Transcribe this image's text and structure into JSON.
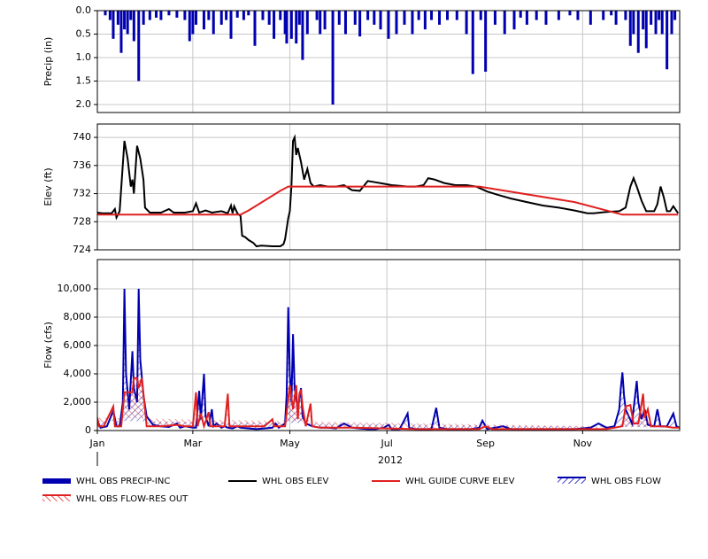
{
  "chart_data": [
    {
      "type": "bar",
      "ylabel": "Precip (in)",
      "xlim": [
        0,
        366
      ],
      "ylim": [
        2.17,
        0
      ],
      "yticks": [
        {
          "value": 0,
          "label": "0.0"
        },
        0.5,
        {
          "value": 1,
          "label": "1.0"
        },
        1.5,
        {
          "value": 2,
          "label": "2.0"
        }
      ],
      "grid": true,
      "series": [
        {
          "name": "WHL OBS PRECIP-INC",
          "color": "#0000b0",
          "x": [
            5,
            8,
            10,
            13,
            15,
            17,
            19,
            21,
            23,
            26,
            29,
            33,
            37,
            40,
            45,
            50,
            55,
            58,
            60,
            62,
            67,
            70,
            73,
            78,
            81,
            84,
            88,
            92,
            95,
            99,
            104,
            108,
            111,
            115,
            118,
            119,
            122,
            125,
            127,
            129,
            132,
            138,
            140,
            143,
            148,
            152,
            156,
            162,
            165,
            170,
            174,
            178,
            183,
            188,
            193,
            198,
            202,
            206,
            210,
            215,
            220,
            226,
            232,
            236,
            241,
            244,
            250,
            256,
            262,
            266,
            270,
            276,
            282,
            290,
            297,
            302,
            310,
            318,
            323,
            326,
            332,
            335,
            337,
            340,
            343,
            345,
            348,
            351,
            353,
            355,
            358,
            361,
            363
          ],
          "values": [
            0.1,
            0.2,
            0.6,
            0.3,
            0.9,
            0.4,
            0.5,
            0.2,
            0.65,
            1.5,
            0.3,
            0.2,
            0.15,
            0.2,
            0.1,
            0.15,
            0.2,
            0.65,
            0.5,
            0.3,
            0.4,
            0.2,
            0.5,
            0.3,
            0.2,
            0.6,
            0.15,
            0.2,
            0.1,
            0.75,
            0.2,
            0.3,
            0.6,
            0.2,
            0.5,
            0.7,
            0.6,
            0.7,
            0.3,
            1.05,
            0.5,
            0.2,
            0.5,
            0.4,
            2.0,
            0.3,
            0.5,
            0.3,
            0.55,
            0.2,
            0.3,
            0.4,
            0.6,
            0.5,
            0.3,
            0.5,
            0.2,
            0.4,
            0.2,
            0.3,
            0.2,
            0.2,
            0.5,
            1.35,
            0.2,
            1.3,
            0.3,
            0.5,
            0.4,
            0.15,
            0.3,
            0.2,
            0.3,
            0.2,
            0.1,
            0.2,
            0.3,
            0.2,
            0.1,
            0.3,
            0.2,
            0.75,
            0.5,
            0.9,
            0.4,
            0.8,
            0.3,
            0.5,
            0.2,
            0.5,
            1.25,
            0.5,
            0.2
          ]
        }
      ]
    },
    {
      "type": "line",
      "ylabel": "Elev (ft)",
      "xlim": [
        0,
        366
      ],
      "ylim": [
        724,
        741.9
      ],
      "yticks": [
        724,
        728,
        732,
        736,
        740
      ],
      "grid": true,
      "series": [
        {
          "name": "WHL OBS ELEV",
          "color": "#000000",
          "x": [
            0,
            3,
            9,
            11,
            12,
            14,
            17,
            19,
            21,
            22,
            23,
            25,
            27,
            29,
            30,
            33,
            40,
            45,
            48,
            55,
            60,
            62,
            64,
            68,
            72,
            78,
            82,
            84,
            85,
            86,
            88,
            90,
            91,
            93,
            95,
            98,
            100,
            103,
            110,
            115,
            117,
            118,
            119,
            120,
            121,
            122,
            123,
            124,
            125,
            126,
            128,
            130,
            132,
            134,
            136,
            140,
            145,
            150,
            155,
            160,
            165,
            170,
            175,
            180,
            185,
            190,
            195,
            200,
            205,
            208,
            212,
            218,
            225,
            232,
            238,
            245,
            252,
            260,
            270,
            280,
            290,
            300,
            308,
            312,
            320,
            328,
            332,
            335,
            337,
            339,
            342,
            345,
            350,
            352,
            354,
            356,
            358,
            360,
            362,
            365
          ],
          "values": [
            729.3,
            729.2,
            729.2,
            729.8,
            728.6,
            729.5,
            739.5,
            737,
            733,
            734,
            732,
            738.8,
            737,
            734,
            730,
            729.3,
            729.3,
            729.8,
            729.3,
            729.3,
            729.5,
            730.6,
            729.3,
            729.6,
            729.3,
            729.5,
            729.2,
            730.3,
            729.2,
            730.2,
            729.2,
            728.8,
            726,
            725.8,
            725.4,
            725,
            724.5,
            724.6,
            724.5,
            724.5,
            724.8,
            725.5,
            727,
            728.5,
            729.5,
            733,
            739.5,
            740,
            737.5,
            738.5,
            736.5,
            734,
            735.5,
            733.5,
            733,
            733.2,
            733,
            733,
            733.2,
            732.5,
            732.4,
            733.8,
            733.6,
            733.4,
            733.2,
            733.1,
            733,
            733,
            733.2,
            734.2,
            734,
            733.5,
            733.2,
            733.2,
            733,
            732.3,
            731.8,
            731.3,
            730.8,
            730.3,
            730,
            729.6,
            729.2,
            729.2,
            729.4,
            729.5,
            730,
            733,
            734.2,
            733,
            731,
            729.5,
            729.5,
            730.5,
            733,
            731.5,
            729.5,
            729.5,
            730.2,
            729.2
          ]
        },
        {
          "name": "WHL GUIDE CURVE ELEV",
          "color": "#e02020",
          "x": [
            0,
            90,
            95,
            105,
            115,
            120,
            240,
            300,
            330,
            365
          ],
          "values": [
            729,
            729,
            729.6,
            731,
            732.4,
            733,
            733,
            730.8,
            729,
            729
          ]
        }
      ]
    },
    {
      "type": "line",
      "ylabel": "Flow (cfs)",
      "xlabel": "2012",
      "xlim": [
        0,
        366
      ],
      "ylim": [
        0,
        12062
      ],
      "xticks": [
        {
          "value": 0,
          "label": "Jan"
        },
        {
          "value": 60,
          "label": "Mar"
        },
        {
          "value": 121,
          "label": "May"
        },
        {
          "value": 182,
          "label": "Jul"
        },
        {
          "value": 244,
          "label": "Sep"
        },
        {
          "value": 305,
          "label": "Nov"
        }
      ],
      "yticks": [
        0,
        {
          "value": 2000,
          "label": "2,000"
        },
        {
          "value": 4000,
          "label": "4,000"
        },
        {
          "value": 6000,
          "label": "6,000"
        },
        {
          "value": 8000,
          "label": "8,000"
        },
        {
          "value": 10000,
          "label": "10,000"
        }
      ],
      "grid": true,
      "series": [
        {
          "name": "WHL OBS FLOW",
          "color": "#0000b0",
          "fill": "hatch",
          "x": [
            0,
            2,
            6,
            10,
            12,
            14,
            16,
            17,
            18,
            20,
            22,
            23,
            25,
            26,
            27,
            29,
            31,
            35,
            40,
            45,
            50,
            52,
            55,
            60,
            62,
            64,
            65,
            67,
            68,
            70,
            72,
            73,
            75,
            78,
            80,
            82,
            85,
            88,
            90,
            95,
            100,
            105,
            110,
            112,
            114,
            118,
            119,
            120,
            121,
            122,
            123,
            124,
            126,
            128,
            129,
            131,
            135,
            140,
            145,
            150,
            155,
            160,
            165,
            170,
            175,
            180,
            183,
            185,
            190,
            195,
            196,
            200,
            205,
            210,
            213,
            215,
            220,
            230,
            235,
            240,
            242,
            245,
            250,
            255,
            260,
            270,
            280,
            290,
            300,
            310,
            315,
            320,
            325,
            328,
            329,
            330,
            331,
            332,
            334,
            336,
            338,
            339,
            340,
            342,
            344,
            346,
            350,
            352,
            354,
            358,
            362,
            364,
            366
          ],
          "values": [
            700,
            200,
            300,
            1400,
            300,
            300,
            2000,
            10000,
            4000,
            1500,
            5600,
            3000,
            2000,
            10000,
            5000,
            2500,
            1000,
            400,
            300,
            250,
            500,
            200,
            300,
            200,
            200,
            2800,
            800,
            4000,
            1000,
            300,
            1500,
            300,
            500,
            200,
            300,
            200,
            150,
            300,
            200,
            150,
            100,
            150,
            200,
            500,
            200,
            500,
            2500,
            8700,
            4000,
            2000,
            6800,
            3000,
            1500,
            3000,
            1000,
            500,
            300,
            200,
            200,
            150,
            500,
            200,
            150,
            100,
            100,
            200,
            400,
            100,
            100,
            1200,
            200,
            100,
            100,
            100,
            1600,
            200,
            100,
            100,
            100,
            200,
            700,
            100,
            200,
            300,
            100,
            100,
            100,
            100,
            100,
            200,
            500,
            200,
            300,
            1500,
            3000,
            4100,
            2500,
            1500,
            1000,
            500,
            2500,
            3500,
            2000,
            800,
            1500,
            400,
            300,
            1500,
            300,
            300,
            1200,
            300,
            200
          ]
        },
        {
          "name": "WHL OBS FLOW-RES OUT",
          "color": "#e02020",
          "fill": "hatch",
          "x": [
            0,
            1,
            4,
            10,
            11,
            15,
            17,
            22,
            23,
            25,
            26,
            28,
            30,
            31,
            35,
            40,
            50,
            55,
            60,
            62,
            63,
            65,
            67,
            70,
            71,
            80,
            82,
            83,
            84,
            88,
            100,
            105,
            110,
            111,
            118,
            121,
            123,
            125,
            126,
            127,
            128,
            129,
            131,
            134,
            135,
            140,
            160,
            200,
            240,
            244,
            248,
            300,
            320,
            330,
            332,
            335,
            337,
            340,
            343,
            344,
            346,
            348,
            356,
            362,
            366
          ],
          "values": [
            900,
            300,
            300,
            1700,
            300,
            300,
            2700,
            2700,
            3700,
            3700,
            3000,
            3700,
            1500,
            300,
            300,
            300,
            400,
            300,
            300,
            2700,
            300,
            1200,
            300,
            1300,
            300,
            300,
            2600,
            300,
            300,
            300,
            300,
            300,
            800,
            300,
            300,
            3200,
            1500,
            3200,
            800,
            2600,
            2900,
            1700,
            300,
            1900,
            300,
            200,
            200,
            100,
            100,
            300,
            100,
            100,
            100,
            300,
            1700,
            1800,
            500,
            500,
            2600,
            900,
            1500,
            300,
            300,
            200,
            200
          ]
        }
      ]
    }
  ]
}
